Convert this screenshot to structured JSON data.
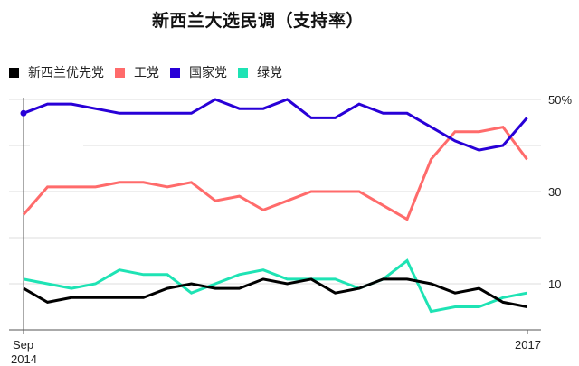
{
  "title": "新西兰大选民调（支持率）",
  "legend": [
    {
      "label": "新西兰优先党",
      "color": "#000000"
    },
    {
      "label": "工党",
      "color": "#ff6b6b"
    },
    {
      "label": "国家党",
      "color": "#2800d7"
    },
    {
      "label": "绿党",
      "color": "#1ee3b4"
    }
  ],
  "chart_data": {
    "type": "line",
    "title": "新西兰大选民调（支持率）",
    "xlabel": "",
    "ylabel": "",
    "ylim": [
      0,
      50
    ],
    "y_ticks": [
      {
        "value": 50,
        "label": "50%"
      },
      {
        "value": 30,
        "label": "30"
      },
      {
        "value": 10,
        "label": "10"
      }
    ],
    "gridlines_at": [
      50,
      40,
      30,
      20,
      10
    ],
    "x_tick_labels": [
      {
        "index": 0,
        "label": "Sep\n2014",
        "line1": "Sep",
        "line2": "2014"
      },
      {
        "index": 21,
        "label": "2017"
      }
    ],
    "x": [
      0,
      1,
      2,
      3,
      4,
      5,
      6,
      7,
      8,
      9,
      10,
      11,
      12,
      13,
      14,
      15,
      16,
      17,
      18,
      19,
      20,
      21
    ],
    "legend_position": "top-left",
    "series": [
      {
        "name": "新西兰优先党",
        "color": "#000000",
        "values": [
          9,
          6,
          7,
          7,
          7,
          7,
          9,
          10,
          9,
          9,
          11,
          10,
          11,
          8,
          9,
          11,
          11,
          10,
          8,
          9,
          6,
          5
        ]
      },
      {
        "name": "工党",
        "color": "#ff6b6b",
        "values": [
          25,
          31,
          31,
          31,
          32,
          32,
          31,
          32,
          28,
          29,
          26,
          28,
          30,
          30,
          30,
          27,
          24,
          37,
          43,
          43,
          44,
          37
        ]
      },
      {
        "name": "国家党",
        "color": "#2800d7",
        "values": [
          47,
          49,
          49,
          48,
          47,
          47,
          47,
          47,
          50,
          48,
          48,
          50,
          46,
          46,
          49,
          47,
          47,
          44,
          41,
          39,
          40,
          46
        ]
      },
      {
        "name": "绿党",
        "color": "#1ee3b4",
        "values": [
          11,
          10,
          9,
          10,
          13,
          12,
          12,
          8,
          10,
          12,
          13,
          11,
          11,
          11,
          9,
          11,
          15,
          4,
          5,
          5,
          7,
          8
        ]
      }
    ]
  }
}
